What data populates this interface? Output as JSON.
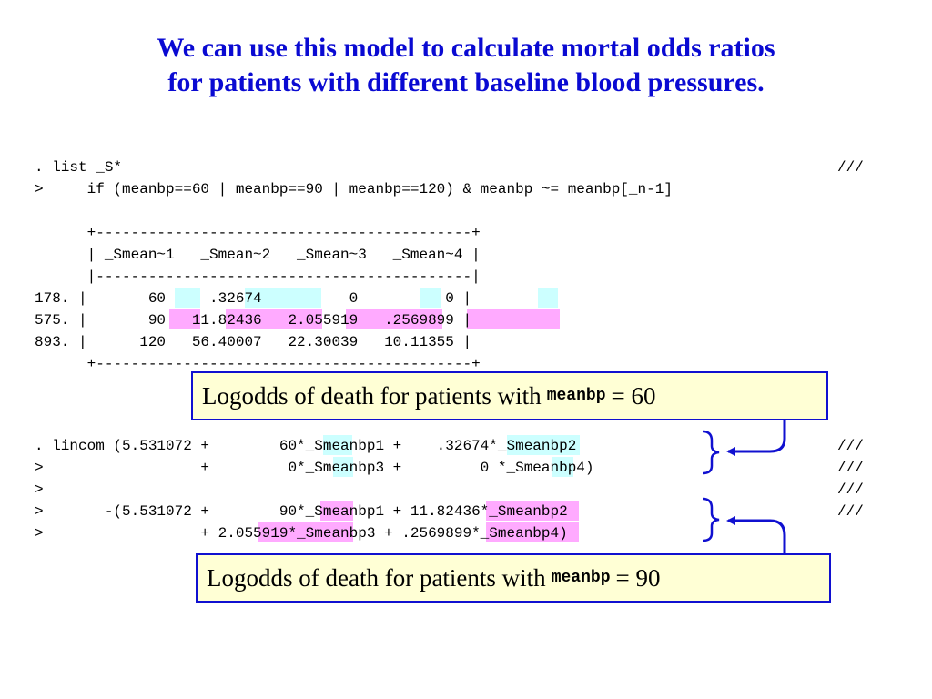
{
  "title": {
    "line1": "We can use this model to calculate mortal odds ratios",
    "line2": "for patients with different baseline blood pressures."
  },
  "list_command": {
    "line1": ". list _S*",
    "line1_cont": "///",
    "line2": ">     if (meanbp==60 | meanbp==90 | meanbp==120) & meanbp ~= meanbp[_n-1]"
  },
  "table": {
    "top_border": "      +-------------------------------------------+",
    "header": "      | _Smean~1   _Smean~2   _Smean~3   _Smean~4 |",
    "separator": "      |-------------------------------------------|",
    "rows": [
      "178. |       60     .32674          0          0 |",
      "575. |       90   11.82436   2.055919   .2569899 |",
      "893. |      120   56.40007   22.30039   10.11355 |"
    ],
    "bottom_border": "      +-------------------------------------------+"
  },
  "lincom": {
    "lines": [
      ". lincom (5.531072 +        60*_Smeanbp1 +    .32674*_Smeanbp2",
      ">                  +         0*_Smeanbp3 +         0 *_Smeanbp4)",
      ">",
      ">       -(5.531072 +        90*_Smeanbp1 + 11.82436*_Smeanbp2",
      ">                  + 2.055919*_Smeanbp3 + .2569899*_Smeanbp4)"
    ],
    "continuations": [
      "///",
      "///",
      "///",
      "///"
    ]
  },
  "callouts": [
    {
      "pre": "Logodds of death for patients with",
      "mono": "meanbp",
      "post": "= 60"
    },
    {
      "pre": "Logodds of death for patients with",
      "mono": "meanbp",
      "post": "= 90"
    }
  ],
  "colors": {
    "title": "#0a0ad2",
    "cyan_highlight": "#ccffff",
    "pink_highlight": "#ffaaff",
    "callout_bg": "#ffffd5",
    "callout_border": "#1010d0",
    "arrow": "#1010d0"
  }
}
